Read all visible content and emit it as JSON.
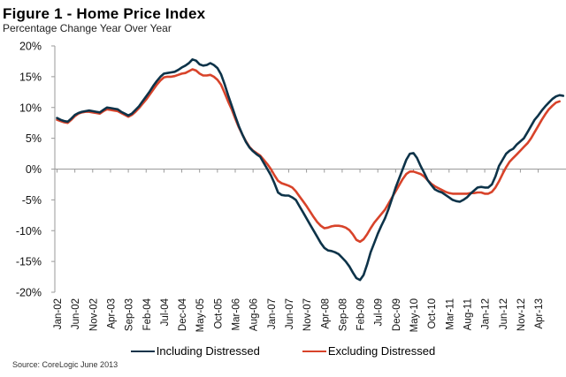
{
  "chart_data": {
    "type": "line",
    "title": "Figure 1 - Home Price Index",
    "subtitle": "Percentage Change Year Over Year",
    "xlabel": "",
    "ylabel": "",
    "ylim": [
      -20,
      20
    ],
    "yticks": [
      20,
      15,
      10,
      5,
      0,
      -5,
      -10,
      -15,
      -20
    ],
    "ytick_labels": [
      "20%",
      "15%",
      "10%",
      "5%",
      "0%",
      "-5%",
      "-10%",
      "-15%",
      "-20%"
    ],
    "x_start": "Jan-02",
    "x_frequency": "monthly",
    "xtick_every_months": 5,
    "xtick_labels": [
      "Jan-02",
      "Jun-02",
      "Nov-02",
      "Apr-03",
      "Sep-03",
      "Feb-04",
      "Jul-04",
      "Dec-04",
      "May-05",
      "Oct-05",
      "Mar-06",
      "Aug-06",
      "Jan-07",
      "Jun-07",
      "Nov-07",
      "Apr-08",
      "Sep-08",
      "Feb-09",
      "Jul-09",
      "Dec-09",
      "May-10",
      "Oct-10",
      "Mar-11",
      "Aug-11",
      "Jan-12",
      "Jun-12",
      "Nov-12",
      "Apr-13"
    ],
    "grid": false,
    "zero_line": true,
    "legend_position": "bottom",
    "series": [
      {
        "name": "Including Distressed",
        "color": "#0d3349",
        "values": [
          8.3,
          8.0,
          7.8,
          7.7,
          8.2,
          8.8,
          9.1,
          9.3,
          9.4,
          9.5,
          9.4,
          9.3,
          9.2,
          9.6,
          10.0,
          9.9,
          9.8,
          9.7,
          9.3,
          9.0,
          8.7,
          9.0,
          9.6,
          10.2,
          11.0,
          11.8,
          12.6,
          13.5,
          14.3,
          15.0,
          15.5,
          15.6,
          15.7,
          15.8,
          16.1,
          16.5,
          16.8,
          17.2,
          17.8,
          17.6,
          17.0,
          16.8,
          16.9,
          17.2,
          16.9,
          16.4,
          15.4,
          13.8,
          12.0,
          10.3,
          8.6,
          7.0,
          5.6,
          4.4,
          3.5,
          2.9,
          2.4,
          2.0,
          1.0,
          0.0,
          -1.0,
          -2.3,
          -3.8,
          -4.2,
          -4.3,
          -4.3,
          -4.6,
          -5.0,
          -6.0,
          -7.0,
          -8.0,
          -9.0,
          -10.0,
          -11.0,
          -12.0,
          -12.8,
          -13.2,
          -13.3,
          -13.5,
          -13.8,
          -14.4,
          -15.0,
          -15.8,
          -16.8,
          -17.7,
          -18.0,
          -17.2,
          -15.5,
          -13.5,
          -12.0,
          -10.5,
          -9.2,
          -8.0,
          -6.5,
          -4.8,
          -3.0,
          -1.5,
          0.0,
          1.5,
          2.5,
          2.6,
          1.8,
          0.5,
          -0.6,
          -1.8,
          -2.6,
          -3.3,
          -3.6,
          -3.8,
          -4.2,
          -4.6,
          -5.0,
          -5.2,
          -5.3,
          -5.0,
          -4.6,
          -4.0,
          -3.5,
          -3.0,
          -2.9,
          -3.0,
          -3.0,
          -2.5,
          -1.2,
          0.5,
          1.5,
          2.5,
          3.0,
          3.3,
          4.0,
          4.5,
          5.0,
          6.0,
          7.0,
          8.0,
          8.7,
          9.5,
          10.2,
          10.8,
          11.4,
          11.8,
          12.0,
          11.9
        ]
      },
      {
        "name": "Excluding Distressed",
        "color": "#d8432a",
        "values": [
          8.0,
          7.8,
          7.6,
          7.5,
          8.0,
          8.6,
          9.0,
          9.2,
          9.3,
          9.3,
          9.2,
          9.1,
          9.0,
          9.4,
          9.7,
          9.6,
          9.5,
          9.4,
          9.1,
          8.8,
          8.5,
          8.8,
          9.3,
          9.9,
          10.6,
          11.3,
          12.1,
          12.9,
          13.7,
          14.4,
          14.9,
          15.0,
          15.0,
          15.1,
          15.3,
          15.5,
          15.6,
          15.9,
          16.2,
          16.0,
          15.5,
          15.2,
          15.2,
          15.3,
          15.0,
          14.5,
          13.7,
          12.4,
          11.0,
          9.7,
          8.2,
          6.8,
          5.6,
          4.5,
          3.6,
          3.0,
          2.6,
          2.2,
          1.5,
          0.8,
          0.0,
          -1.0,
          -1.9,
          -2.3,
          -2.5,
          -2.7,
          -3.0,
          -3.6,
          -4.4,
          -5.2,
          -6.0,
          -6.9,
          -7.8,
          -8.6,
          -9.2,
          -9.6,
          -9.5,
          -9.3,
          -9.2,
          -9.2,
          -9.3,
          -9.5,
          -9.9,
          -10.6,
          -11.5,
          -11.8,
          -11.4,
          -10.6,
          -9.6,
          -8.7,
          -8.0,
          -7.3,
          -6.6,
          -5.6,
          -4.6,
          -3.6,
          -2.6,
          -1.6,
          -0.8,
          -0.4,
          -0.4,
          -0.6,
          -0.8,
          -1.2,
          -1.8,
          -2.4,
          -2.8,
          -3.1,
          -3.4,
          -3.7,
          -3.9,
          -4.0,
          -4.0,
          -4.0,
          -4.0,
          -4.0,
          -3.9,
          -3.9,
          -3.8,
          -3.8,
          -4.0,
          -4.0,
          -3.7,
          -3.0,
          -2.0,
          -0.8,
          0.3,
          1.2,
          1.8,
          2.4,
          3.0,
          3.6,
          4.2,
          5.0,
          6.0,
          7.0,
          8.0,
          8.9,
          9.7,
          10.3,
          10.8,
          11.0
        ]
      }
    ],
    "source": "Source: CoreLogic June 2013"
  }
}
